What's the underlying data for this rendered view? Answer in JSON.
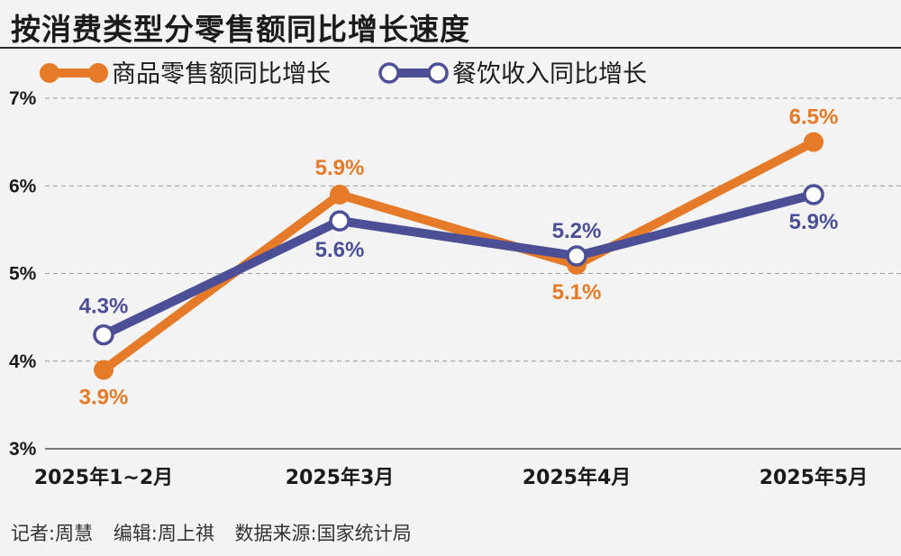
{
  "title": "按消费类型分零售额同比增长速度",
  "footer": {
    "reporter": "记者:周慧",
    "editor": "编辑:周上祺",
    "source": "数据来源:国家统计局"
  },
  "chart_data": {
    "type": "line",
    "categories": [
      "2025年1~2月",
      "2025年3月",
      "2025年4月",
      "2025年5月"
    ],
    "series": [
      {
        "name": "商品零售额同比增长",
        "values": [
          3.9,
          5.9,
          5.1,
          6.5
        ],
        "labels": [
          "3.9%",
          "5.9%",
          "5.1%",
          "6.5%"
        ],
        "color": "#e57a28",
        "marker": "filled"
      },
      {
        "name": "餐饮收入同比增长",
        "values": [
          4.3,
          5.6,
          5.2,
          5.9
        ],
        "labels": [
          "4.3%",
          "5.6%",
          "5.2%",
          "5.9%"
        ],
        "color": "#4c4f96",
        "marker": "hollow"
      }
    ],
    "ylim": [
      3,
      7
    ],
    "yticks": [
      "3%",
      "4%",
      "5%",
      "6%",
      "7%"
    ],
    "grid": true,
    "legend": "top-left"
  }
}
